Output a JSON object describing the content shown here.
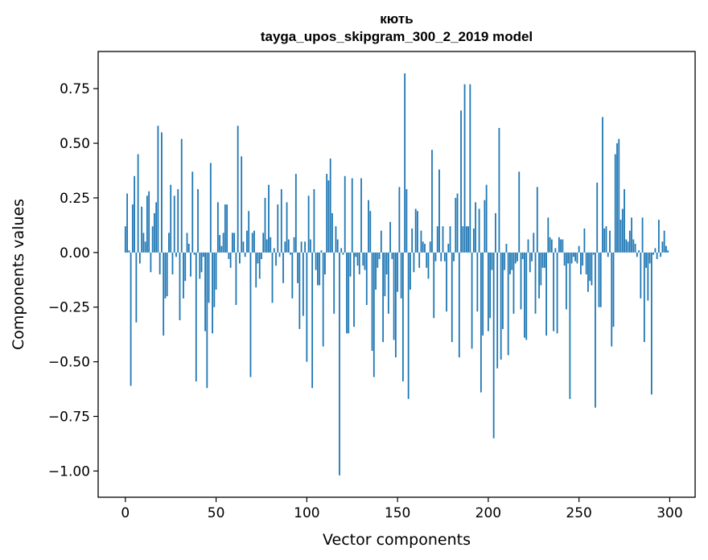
{
  "chart_data": {
    "type": "bar",
    "title": "кють",
    "subtitle": "tayga_upos_skipgram_300_2_2019 model",
    "xlabel": "Vector components",
    "ylabel": "Components values",
    "xlim": [
      -15,
      314
    ],
    "ylim": [
      -1.12,
      0.92
    ],
    "xticks": [
      0,
      50,
      100,
      150,
      200,
      250,
      300
    ],
    "yticks": [
      -1.0,
      -0.75,
      -0.5,
      -0.25,
      0.0,
      0.25,
      0.5,
      0.75
    ],
    "ytick_labels": [
      "−1.00",
      "−0.75",
      "−0.50",
      "−0.25",
      "0.00",
      "0.25",
      "0.50",
      "0.75"
    ],
    "bar_color": "#1f77b4",
    "grid": false,
    "x": "0..299",
    "values": [
      0.12,
      0.27,
      0.01,
      -0.61,
      0.22,
      0.35,
      -0.32,
      0.45,
      -0.05,
      0.21,
      0.09,
      0.05,
      0.26,
      0.28,
      -0.09,
      0.12,
      0.18,
      0.23,
      0.58,
      -0.1,
      0.55,
      -0.38,
      -0.21,
      -0.2,
      0.09,
      0.31,
      -0.1,
      0.26,
      -0.02,
      0.29,
      -0.31,
      0.52,
      -0.21,
      -0.13,
      0.09,
      0.04,
      -0.11,
      0.37,
      -0.01,
      -0.59,
      0.29,
      -0.12,
      -0.09,
      -0.02,
      -0.36,
      -0.62,
      -0.23,
      0.41,
      -0.37,
      -0.25,
      -0.17,
      0.23,
      0.08,
      0.03,
      0.09,
      0.22,
      0.22,
      -0.03,
      -0.07,
      0.09,
      0.09,
      -0.24,
      0.58,
      -0.05,
      0.44,
      0.05,
      -0.02,
      0.1,
      0.19,
      -0.57,
      0.09,
      0.1,
      -0.16,
      -0.05,
      -0.12,
      -0.03,
      0.09,
      0.25,
      0.06,
      0.31,
      0.07,
      -0.23,
      0.02,
      -0.06,
      0.22,
      -0.02,
      0.29,
      -0.14,
      0.05,
      0.23,
      0.06,
      -0.01,
      -0.21,
      0.07,
      0.36,
      -0.14,
      -0.35,
      0.05,
      -0.29,
      0.05,
      -0.5,
      0.26,
      0.06,
      -0.62,
      0.29,
      -0.08,
      -0.15,
      -0.15,
      0.01,
      -0.43,
      -0.1,
      0.36,
      0.33,
      0.43,
      0.18,
      -0.28,
      0.12,
      0.06,
      -1.02,
      0.02,
      -0.01,
      0.35,
      -0.37,
      -0.37,
      -0.11,
      0.34,
      -0.34,
      -0.02,
      -0.06,
      -0.1,
      0.34,
      -0.06,
      -0.08,
      -0.24,
      0.24,
      0.19,
      -0.45,
      -0.57,
      -0.17,
      -0.07,
      -0.03,
      0.1,
      -0.41,
      -0.2,
      -0.1,
      -0.28,
      0.14,
      -0.03,
      -0.4,
      -0.48,
      -0.18,
      0.3,
      -0.21,
      -0.59,
      0.82,
      0.29,
      -0.67,
      -0.17,
      0.11,
      -0.09,
      0.2,
      0.19,
      -0.07,
      0.1,
      0.05,
      0.04,
      -0.07,
      -0.12,
      0.05,
      0.47,
      -0.3,
      -0.04,
      0.12,
      0.38,
      -0.04,
      0.12,
      -0.04,
      -0.27,
      0.04,
      0.12,
      -0.41,
      -0.04,
      0.25,
      0.27,
      -0.48,
      0.65,
      0.12,
      0.77,
      0.12,
      0.12,
      0.77,
      -0.44,
      0.11,
      0.23,
      -0.27,
      0.2,
      -0.64,
      -0.38,
      0.24,
      0.31,
      -0.36,
      -0.3,
      -0.08,
      -0.85,
      0.18,
      -0.53,
      0.57,
      -0.49,
      -0.35,
      -0.08,
      0.04,
      -0.47,
      -0.1,
      -0.08,
      -0.28,
      -0.05,
      -0.04,
      0.37,
      -0.26,
      -0.03,
      -0.39,
      -0.4,
      0.06,
      -0.09,
      -0.04,
      0.09,
      -0.28,
      0.3,
      -0.21,
      -0.15,
      -0.07,
      -0.07,
      -0.38,
      0.16,
      0.07,
      0.06,
      -0.36,
      0.02,
      -0.37,
      0.07,
      0.06,
      0.06,
      -0.06,
      -0.26,
      -0.05,
      -0.67,
      -0.05,
      -0.02,
      -0.04,
      -0.05,
      0.03,
      -0.1,
      -0.06,
      0.11,
      -0.1,
      -0.18,
      -0.13,
      -0.15,
      -0.01,
      -0.71,
      0.32,
      -0.25,
      -0.25,
      0.62,
      0.11,
      0.12,
      -0.02,
      0.1,
      -0.43,
      -0.34,
      0.45,
      0.5,
      0.52,
      0.15,
      0.2,
      0.29,
      0.06,
      0.05,
      0.1,
      0.16,
      0.06,
      0.04,
      -0.02,
      0.01,
      -0.21,
      0.16,
      -0.41,
      -0.07,
      -0.22,
      -0.05,
      -0.65,
      -0.01,
      0.02,
      -0.03,
      0.15,
      -0.02,
      0.05,
      0.1,
      0.03,
      0.01
    ]
  }
}
